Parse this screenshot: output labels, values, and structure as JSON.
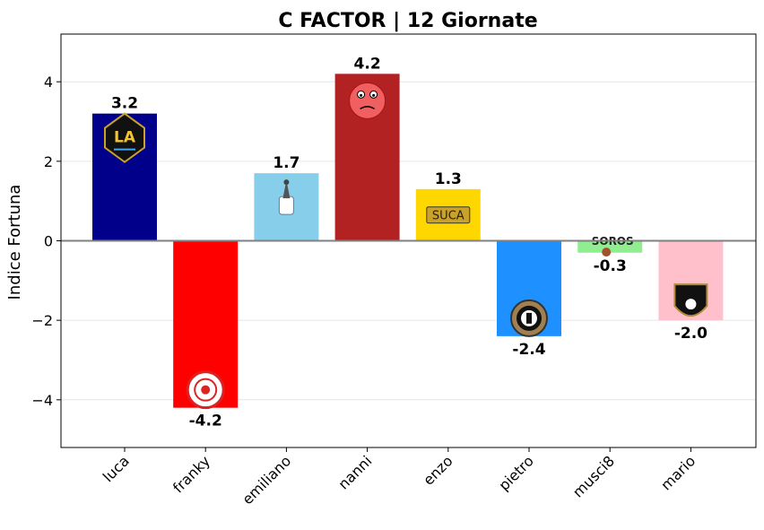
{
  "chart_data": {
    "type": "bar",
    "title": "C FACTOR | 12 Giornate",
    "xlabel": "",
    "ylabel": "Indice Fortuna",
    "ylim": [
      -5.2,
      5.2
    ],
    "yticks": [
      -4,
      -2,
      0,
      2,
      4
    ],
    "ytick_labels": [
      "−4",
      "−2",
      "0",
      "2",
      "4"
    ],
    "categories": [
      "luca",
      "franky",
      "emiliano",
      "nanni",
      "enzo",
      "pietro",
      "musci8",
      "mario"
    ],
    "values": [
      3.2,
      -4.2,
      1.7,
      4.2,
      1.3,
      -2.4,
      -0.3,
      -2.0
    ],
    "value_labels": [
      "3.2",
      "-4.2",
      "1.7",
      "4.2",
      "1.3",
      "-2.4",
      "-0.3",
      "-2.0"
    ],
    "colors": [
      "#00008b",
      "#ff0000",
      "#87ceeb",
      "#b22222",
      "#ffd700",
      "#1e90ff",
      "#90ee90",
      "#ffc0cb"
    ],
    "grid": true,
    "zero_line": true,
    "logos": [
      {
        "team": "luca",
        "icon": "la-galaxy-crest-icon",
        "text": "LA"
      },
      {
        "team": "franky",
        "icon": "red-circular-crest-icon",
        "text": ""
      },
      {
        "team": "emiliano",
        "icon": "eagle-crest-icon",
        "text": ""
      },
      {
        "team": "nanni",
        "icon": "angry-red-face-icon",
        "text": ""
      },
      {
        "team": "enzo",
        "icon": "suca-badge-icon",
        "text": "SUCA"
      },
      {
        "team": "pietro",
        "icon": "round-crest-icon",
        "text": ""
      },
      {
        "team": "musci8",
        "icon": "soros-fc-logo-icon",
        "text": "SOROS"
      },
      {
        "team": "mario",
        "icon": "dark-shield-crest-icon",
        "text": ""
      }
    ]
  }
}
